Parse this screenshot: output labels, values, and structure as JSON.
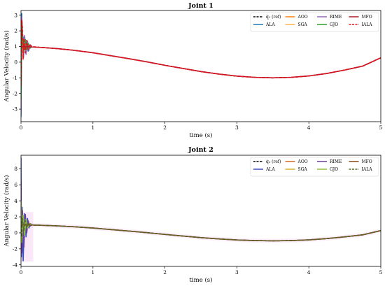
{
  "chart_data": [
    {
      "type": "line",
      "title": "Joint 1",
      "xlabel": "time (s)",
      "ylabel": "Angular Velocity (rad/s)",
      "xlim": [
        0,
        5
      ],
      "ylim": [
        -3.8,
        3.3
      ],
      "xticks": [
        "0",
        "1",
        "2",
        "3",
        "4",
        "5"
      ],
      "yticks": [
        "-3",
        "-2",
        "-1",
        "0",
        "1",
        "2",
        "3"
      ],
      "grid": false,
      "legend_position": "top-right",
      "legend_columns": 4,
      "series": [
        {
          "name": "q̇₁ (ref)",
          "color": "#000000",
          "dash": "4,2",
          "x": [
            0,
            0.25,
            0.5,
            0.75,
            1,
            1.25,
            1.5,
            1.75,
            2,
            2.25,
            2.5,
            2.75,
            3,
            3.25,
            3.5,
            3.75,
            4,
            4.25,
            4.5,
            4.75,
            5
          ],
          "y": [
            1.0,
            0.95,
            0.87,
            0.75,
            0.6,
            0.41,
            0.22,
            0.02,
            -0.2,
            -0.4,
            -0.6,
            -0.76,
            -0.89,
            -0.97,
            -1.0,
            -0.97,
            -0.88,
            -0.72,
            -0.5,
            -0.25,
            0.28
          ]
        },
        {
          "name": "ALA",
          "color": "#1f77b4",
          "dash": "",
          "x": [
            0,
            0.01,
            0.02,
            0.03,
            0.04,
            0.06,
            0.08,
            0.1,
            0.12,
            0.15
          ],
          "y": [
            -3.5,
            3.1,
            1.5,
            0.5,
            1.6,
            0.8,
            1.3,
            0.7,
            1.1,
            1.0
          ]
        },
        {
          "name": "AOO",
          "color": "#ff7f0e",
          "dash": "",
          "x": [
            0,
            0.01,
            0.02,
            0.03,
            0.05,
            0.07,
            0.09,
            0.11,
            0.13,
            0.15
          ],
          "y": [
            -2.8,
            2.3,
            1.9,
            0.6,
            1.5,
            0.7,
            1.2,
            0.8,
            1.05,
            1.0
          ]
        },
        {
          "name": "SGA",
          "color": "#ffb24a",
          "dash": "",
          "x": [
            0,
            0.01,
            0.02,
            0.04,
            0.06,
            0.08,
            0.1,
            0.13,
            0.15
          ],
          "y": [
            -2.0,
            1.8,
            1.4,
            0.9,
            1.3,
            0.85,
            1.15,
            0.95,
            1.0
          ]
        },
        {
          "name": "RIME",
          "color": "#9467bd",
          "dash": "",
          "x": [
            0,
            0.01,
            0.02,
            0.035,
            0.05,
            0.07,
            0.09,
            0.11,
            0.13,
            0.15
          ],
          "y": [
            -3.2,
            2.9,
            2.0,
            0.3,
            1.7,
            0.5,
            1.35,
            0.75,
            1.1,
            1.0
          ]
        },
        {
          "name": "GJO",
          "color": "#2ca02c",
          "dash": "",
          "x": [
            0,
            0.01,
            0.02,
            0.04,
            0.06,
            0.08,
            0.1,
            0.13,
            0.15
          ],
          "y": [
            -2.4,
            2.5,
            1.6,
            0.7,
            1.45,
            0.8,
            1.2,
            0.9,
            1.0
          ]
        },
        {
          "name": "MFO",
          "color": "#b5172a",
          "dash": "",
          "x": [
            0,
            0.25,
            0.5,
            0.75,
            1,
            1.25,
            1.5,
            1.75,
            2,
            2.25,
            2.5,
            2.75,
            3,
            3.25,
            3.5,
            3.75,
            4,
            4.25,
            4.5,
            4.75,
            5
          ],
          "y": [
            1.0,
            0.95,
            0.87,
            0.75,
            0.6,
            0.41,
            0.22,
            0.02,
            -0.2,
            -0.4,
            -0.6,
            -0.76,
            -0.89,
            -0.97,
            -1.0,
            -0.97,
            -0.88,
            -0.72,
            -0.5,
            -0.25,
            0.28
          ]
        },
        {
          "name": "IALA",
          "color": "#e8121c",
          "dash": "4,2",
          "x": [
            0,
            0.01,
            0.02,
            0.03,
            0.04,
            0.06,
            0.08,
            0.1,
            0.12,
            0.15,
            0.25,
            0.5,
            0.75,
            1,
            1.25,
            1.5,
            1.75,
            2,
            2.25,
            2.5,
            2.75,
            3,
            3.25,
            3.5,
            3.75,
            4,
            4.25,
            4.5,
            4.75,
            5
          ],
          "y": [
            -1.5,
            2.7,
            2.2,
            0.2,
            1.5,
            0.6,
            1.4,
            0.8,
            1.15,
            1.0,
            0.95,
            0.87,
            0.75,
            0.6,
            0.41,
            0.22,
            0.02,
            -0.2,
            -0.4,
            -0.6,
            -0.76,
            -0.89,
            -0.97,
            -1.0,
            -0.97,
            -0.88,
            -0.72,
            -0.5,
            -0.25,
            0.28
          ]
        }
      ]
    },
    {
      "type": "line",
      "title": "Joint 2",
      "xlabel": "time (s)",
      "ylabel": "Angular Velocity (rad/s)",
      "xlim": [
        0,
        5
      ],
      "ylim": [
        -4.2,
        9.7
      ],
      "xticks": [
        "0",
        "1",
        "2",
        "3",
        "4",
        "5"
      ],
      "yticks": [
        "-4",
        "-2",
        "0",
        "2",
        "4",
        "6",
        "8"
      ],
      "grid": false,
      "legend_position": "top-right",
      "legend_columns": 4,
      "series": [
        {
          "name": "q̇₂ (ref)",
          "color": "#000000",
          "dash": "4,2",
          "x": [
            0,
            0.25,
            0.5,
            0.75,
            1,
            1.25,
            1.5,
            1.75,
            2,
            2.25,
            2.5,
            2.75,
            3,
            3.25,
            3.5,
            3.75,
            4,
            4.25,
            4.5,
            4.75,
            5
          ],
          "y": [
            1.0,
            0.95,
            0.87,
            0.75,
            0.6,
            0.41,
            0.22,
            0.02,
            -0.2,
            -0.4,
            -0.6,
            -0.76,
            -0.89,
            -0.97,
            -1.0,
            -0.97,
            -0.88,
            -0.72,
            -0.5,
            -0.25,
            0.28
          ]
        },
        {
          "name": "ALA",
          "color": "#3b4cc0",
          "dash": "",
          "x": [
            0,
            0.005,
            0.015,
            0.03,
            0.05,
            0.07,
            0.09,
            0.11,
            0.13,
            0.15
          ],
          "y": [
            9.4,
            -3.0,
            3.2,
            -3.5,
            2.4,
            -0.5,
            1.8,
            0.6,
            1.15,
            1.0
          ]
        },
        {
          "name": "AOO",
          "color": "#d2691e",
          "dash": "",
          "x": [
            0,
            0.01,
            0.02,
            0.04,
            0.06,
            0.08,
            0.1,
            0.12,
            0.15
          ],
          "y": [
            5.0,
            -1.5,
            2.5,
            -0.8,
            1.9,
            0.4,
            1.3,
            0.85,
            1.0
          ]
        },
        {
          "name": "SGA",
          "color": "#d4b12e",
          "dash": "",
          "x": [
            0,
            0.01,
            0.03,
            0.05,
            0.07,
            0.09,
            0.11,
            0.15
          ],
          "y": [
            3.5,
            -1.0,
            2.0,
            0.0,
            1.6,
            0.7,
            1.2,
            1.0
          ]
        },
        {
          "name": "RIME",
          "color": "#6a3d9a",
          "dash": "",
          "x": [
            0,
            0.01,
            0.02,
            0.04,
            0.06,
            0.08,
            0.1,
            0.12,
            0.15
          ],
          "y": [
            6.5,
            -2.5,
            2.8,
            -1.8,
            2.3,
            0.0,
            1.5,
            0.8,
            1.0
          ]
        },
        {
          "name": "GJO",
          "color": "#8fbf3a",
          "dash": "",
          "x": [
            0,
            0.01,
            0.03,
            0.05,
            0.07,
            0.09,
            0.12,
            0.15
          ],
          "y": [
            4.0,
            -1.2,
            2.2,
            -0.3,
            1.7,
            0.6,
            1.1,
            1.0
          ]
        },
        {
          "name": "MFO",
          "color": "#8b4513",
          "dash": "",
          "x": [
            0,
            0.25,
            0.5,
            0.75,
            1,
            1.25,
            1.5,
            1.75,
            2,
            2.25,
            2.5,
            2.75,
            3,
            3.25,
            3.5,
            3.75,
            4,
            4.25,
            4.5,
            4.75,
            5
          ],
          "y": [
            1.0,
            0.95,
            0.87,
            0.75,
            0.6,
            0.41,
            0.22,
            0.02,
            -0.2,
            -0.4,
            -0.6,
            -0.76,
            -0.89,
            -0.97,
            -1.0,
            -0.97,
            -0.88,
            -0.72,
            -0.5,
            -0.25,
            0.28
          ]
        },
        {
          "name": "IALA",
          "color": "#556b2f",
          "dash": "4,2",
          "x": [
            0,
            0.01,
            0.02,
            0.04,
            0.06,
            0.08,
            0.1,
            0.13,
            0.15,
            0.25,
            0.5,
            0.75,
            1,
            1.25,
            1.5,
            1.75,
            2,
            2.25,
            2.5,
            2.75,
            3,
            3.25,
            3.5,
            3.75,
            4,
            4.25,
            4.5,
            4.75,
            5
          ],
          "y": [
            2.0,
            -0.5,
            1.8,
            0.3,
            1.5,
            0.7,
            1.2,
            0.95,
            1.0,
            0.95,
            0.87,
            0.75,
            0.6,
            0.41,
            0.22,
            0.02,
            -0.2,
            -0.4,
            -0.6,
            -0.76,
            -0.89,
            -0.97,
            -1.0,
            -0.97,
            -0.88,
            -0.72,
            -0.5,
            -0.25,
            0.28
          ]
        }
      ]
    }
  ]
}
